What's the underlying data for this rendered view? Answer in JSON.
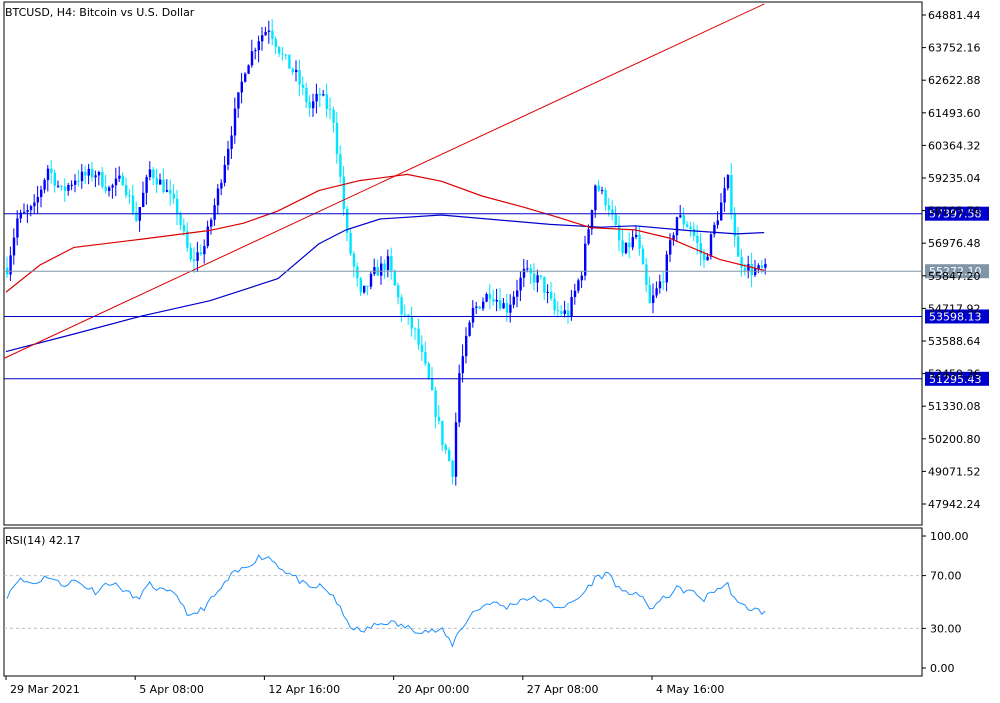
{
  "window": {
    "title": "BTCUSD, H4:  Bitcoin vs U.S. Dollar"
  },
  "colors": {
    "bull": "#0000ff",
    "bear": "#00e5ff",
    "ma_fast": "#0000cc",
    "ma_slow": "#dd0000",
    "trendline": "#dd0000",
    "hline": "#0000cc",
    "rsi": "#1e90ff",
    "grid_dashed": "#c0c0c0",
    "frame": "#000000",
    "price_tag": "#7f95a8"
  },
  "chart_data": [
    {
      "type": "candlestick",
      "title": "BTCUSD, H4:  Bitcoin vs U.S. Dollar",
      "price_axis_ticks": [
        "64881.44",
        "63752.16",
        "62622.88",
        "61493.60",
        "60364.32",
        "59235.04",
        "58105.76",
        "56976.48",
        "55847.20",
        "54717.92",
        "53588.64",
        "52459.36",
        "51330.08",
        "50200.80",
        "49071.52",
        "47942.24"
      ],
      "ylim": [
        46900,
        65000
      ],
      "time_axis_labels": [
        "29 Mar 2021",
        "5 Apr 08:00",
        "12 Apr 16:00",
        "20 Apr 00:00",
        "27 Apr 08:00",
        "4 May 16:00"
      ],
      "current_price": "55272.10",
      "horizontal_levels": [
        {
          "label": "57397.58",
          "value": 57397.58
        },
        {
          "label": "53598.13",
          "value": 53598.13
        },
        {
          "label": "51295.43",
          "value": 51295.43
        }
      ],
      "trendline": {
        "start_bar": 0,
        "start_value": 52050,
        "end_bar": 223,
        "end_value": 65150
      },
      "close_path": [
        [
          0,
          55400
        ],
        [
          3,
          57200
        ],
        [
          8,
          57600
        ],
        [
          12,
          59100
        ],
        [
          16,
          58200
        ],
        [
          20,
          58700
        ],
        [
          26,
          58900
        ],
        [
          30,
          58300
        ],
        [
          34,
          58700
        ],
        [
          38,
          57200
        ],
        [
          42,
          59000
        ],
        [
          46,
          58400
        ],
        [
          50,
          57500
        ],
        [
          54,
          55600
        ],
        [
          58,
          56200
        ],
        [
          62,
          58200
        ],
        [
          66,
          60500
        ],
        [
          70,
          62800
        ],
        [
          74,
          63900
        ],
        [
          77,
          64300
        ],
        [
          81,
          63200
        ],
        [
          85,
          62500
        ],
        [
          89,
          61300
        ],
        [
          92,
          61800
        ],
        [
          96,
          60900
        ],
        [
          100,
          56500
        ],
        [
          104,
          54300
        ],
        [
          108,
          55200
        ],
        [
          112,
          55600
        ],
        [
          116,
          53800
        ],
        [
          120,
          53000
        ],
        [
          124,
          51200
        ],
        [
          128,
          49000
        ],
        [
          131,
          47900
        ],
        [
          133,
          51500
        ],
        [
          137,
          53800
        ],
        [
          142,
          54500
        ],
        [
          147,
          53900
        ],
        [
          152,
          55200
        ],
        [
          157,
          54900
        ],
        [
          161,
          53800
        ],
        [
          165,
          53700
        ],
        [
          169,
          55300
        ],
        [
          173,
          58500
        ],
        [
          177,
          57700
        ],
        [
          181,
          55900
        ],
        [
          185,
          56600
        ],
        [
          189,
          54000
        ],
        [
          193,
          55100
        ],
        [
          197,
          57300
        ],
        [
          201,
          56900
        ],
        [
          205,
          55600
        ],
        [
          208,
          56900
        ],
        [
          212,
          58600
        ],
        [
          215,
          55700
        ],
        [
          219,
          55300
        ],
        [
          223,
          55300
        ]
      ],
      "indicators": [
        {
          "name": "MA fast",
          "color": "#0000cc",
          "path": [
            [
              0,
              52300
            ],
            [
              20,
              52950
            ],
            [
              40,
              53620
            ],
            [
              60,
              54180
            ],
            [
              80,
              55000
            ],
            [
              92,
              56280
            ],
            [
              100,
              56800
            ],
            [
              110,
              57200
            ],
            [
              128,
              57350
            ],
            [
              140,
              57220
            ],
            [
              160,
              57000
            ],
            [
              175,
              56900
            ],
            [
              185,
              56950
            ],
            [
              200,
              56780
            ],
            [
              215,
              56650
            ],
            [
              223,
              56700
            ]
          ]
        },
        {
          "name": "MA slow",
          "color": "#dd0000",
          "path": [
            [
              0,
              54500
            ],
            [
              10,
              55500
            ],
            [
              20,
              56150
            ],
            [
              40,
              56460
            ],
            [
              60,
              56780
            ],
            [
              70,
              57050
            ],
            [
              80,
              57500
            ],
            [
              92,
              58250
            ],
            [
              104,
              58620
            ],
            [
              118,
              58850
            ],
            [
              128,
              58600
            ],
            [
              140,
              58050
            ],
            [
              152,
              57650
            ],
            [
              162,
              57280
            ],
            [
              172,
              56880
            ],
            [
              185,
              56800
            ],
            [
              195,
              56500
            ],
            [
              210,
              55700
            ],
            [
              223,
              55300
            ]
          ]
        }
      ]
    },
    {
      "type": "line",
      "title": "RSI(14) 42.17",
      "ticks": [
        "100.00",
        "70.00",
        "30.00",
        "0.00"
      ],
      "ylim": [
        0,
        100
      ],
      "levels": [
        70,
        30
      ],
      "path": [
        [
          0,
          55
        ],
        [
          3,
          67
        ],
        [
          8,
          64
        ],
        [
          12,
          70
        ],
        [
          16,
          63
        ],
        [
          20,
          66
        ],
        [
          26,
          58
        ],
        [
          30,
          65
        ],
        [
          34,
          60
        ],
        [
          38,
          52
        ],
        [
          42,
          63
        ],
        [
          46,
          58
        ],
        [
          50,
          55
        ],
        [
          54,
          38
        ],
        [
          58,
          46
        ],
        [
          62,
          57
        ],
        [
          66,
          70
        ],
        [
          70,
          76
        ],
        [
          74,
          84
        ],
        [
          77,
          84
        ],
        [
          81,
          75
        ],
        [
          85,
          68
        ],
        [
          89,
          60
        ],
        [
          92,
          62
        ],
        [
          96,
          55
        ],
        [
          100,
          34
        ],
        [
          104,
          27
        ],
        [
          108,
          32
        ],
        [
          112,
          35
        ],
        [
          116,
          32
        ],
        [
          120,
          29
        ],
        [
          124,
          28
        ],
        [
          128,
          28
        ],
        [
          131,
          18
        ],
        [
          133,
          28
        ],
        [
          137,
          42
        ],
        [
          142,
          50
        ],
        [
          147,
          46
        ],
        [
          152,
          53
        ],
        [
          157,
          52
        ],
        [
          161,
          47
        ],
        [
          165,
          47
        ],
        [
          169,
          55
        ],
        [
          173,
          68
        ],
        [
          177,
          72
        ],
        [
          181,
          56
        ],
        [
          185,
          58
        ],
        [
          189,
          45
        ],
        [
          193,
          52
        ],
        [
          197,
          60
        ],
        [
          201,
          58
        ],
        [
          205,
          52
        ],
        [
          208,
          59
        ],
        [
          212,
          63
        ],
        [
          215,
          48
        ],
        [
          219,
          45
        ],
        [
          223,
          42
        ]
      ]
    }
  ]
}
